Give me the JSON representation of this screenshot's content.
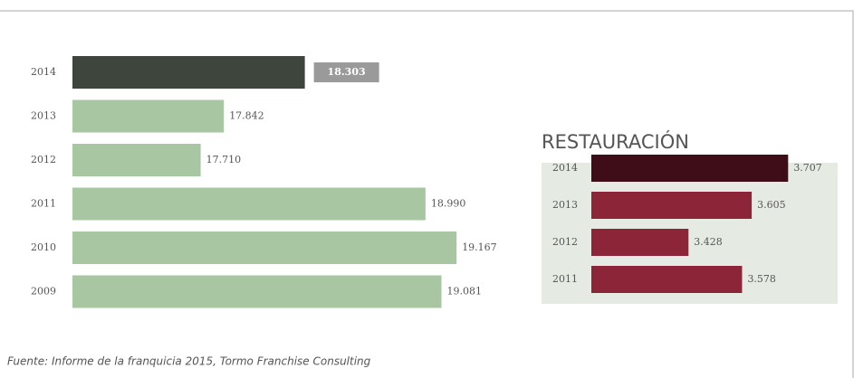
{
  "chart_data": [
    {
      "type": "bar",
      "orientation": "horizontal",
      "categories": [
        "2014",
        "2013",
        "2012",
        "2011",
        "2010",
        "2009"
      ],
      "values": [
        18303,
        17842,
        17710,
        18990,
        19167,
        19081
      ],
      "value_labels": [
        "18.303",
        "17.842",
        "17.710",
        "18.990",
        "19.167",
        "19.081"
      ],
      "colors": [
        "#3d453d",
        "#a9c6a2",
        "#a9c6a2",
        "#a9c6a2",
        "#a9c6a2",
        "#a9c6a2"
      ],
      "highlight": [
        true,
        false,
        false,
        false,
        false,
        false
      ],
      "xlim": [
        16980,
        19300
      ]
    },
    {
      "type": "bar",
      "orientation": "horizontal",
      "title": "RESTAURACIÓN",
      "categories": [
        "2014",
        "2013",
        "2012",
        "2011"
      ],
      "values": [
        3707,
        3605,
        3428,
        3578
      ],
      "value_labels": [
        "3.707",
        "3.605",
        "3.428",
        "3.578"
      ],
      "colors": [
        "#3f0d18",
        "#8b2537",
        "#8b2537",
        "#8b2537"
      ],
      "highlight": [
        false,
        false,
        false,
        false
      ],
      "xlim": [
        3156,
        3800
      ]
    }
  ],
  "source": "Fuente: Informe de la franquicia 2015, Tormo Franchise Consulting"
}
